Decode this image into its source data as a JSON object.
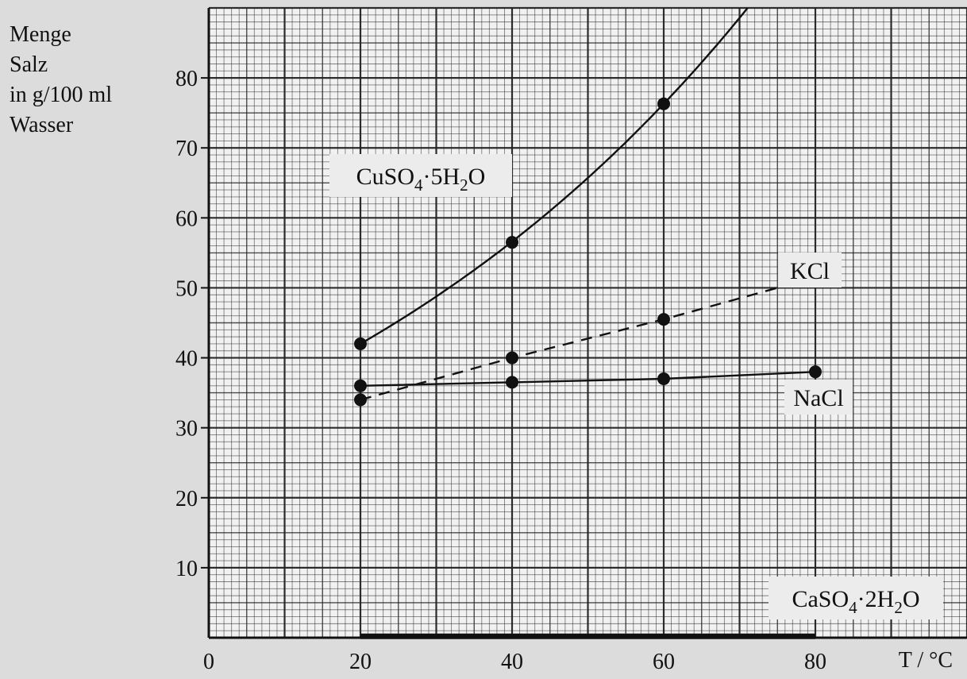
{
  "chart_data": {
    "type": "line",
    "ylabel": [
      "Menge",
      "Salz",
      "in g/100 ml",
      "Wasser"
    ],
    "xlabel": "T / °C",
    "x_ticks": [
      0,
      20,
      40,
      60,
      80
    ],
    "y_ticks": [
      10,
      20,
      30,
      40,
      50,
      60,
      70,
      80
    ],
    "xlim": [
      0,
      100
    ],
    "ylim": [
      0,
      90
    ],
    "grid": true,
    "series": [
      {
        "name": "CuSO4·5H2O",
        "style": "solid",
        "curve": "exponential",
        "x": [
          20,
          40,
          60
        ],
        "y": [
          42,
          56.5,
          76.3
        ]
      },
      {
        "name": "KCl",
        "style": "dashed",
        "curve": "linear",
        "x": [
          20,
          40,
          60,
          80
        ],
        "y": [
          34,
          40,
          45.5,
          51.5
        ]
      },
      {
        "name": "NaCl",
        "style": "solid",
        "curve": "linear",
        "x": [
          20,
          40,
          60,
          80
        ],
        "y": [
          36,
          36.5,
          37,
          38
        ]
      },
      {
        "name": "CaSO4·2H2O",
        "style": "solid",
        "curve": "linear",
        "x": [
          20,
          80
        ],
        "y": [
          0.2,
          0.2
        ]
      }
    ]
  }
}
